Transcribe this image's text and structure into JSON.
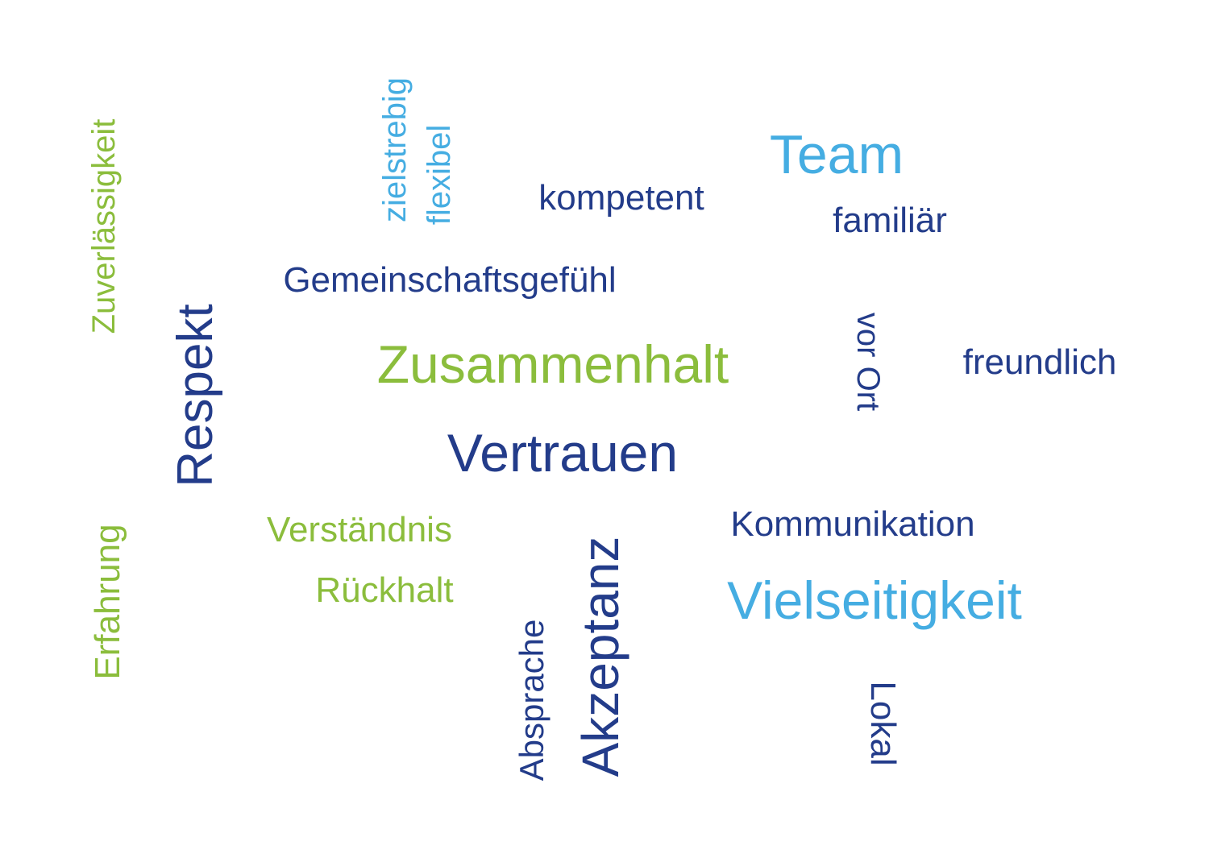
{
  "colors": {
    "navy": "#233c8a",
    "light_blue": "#45ade2",
    "green": "#8bbd3c"
  },
  "words": [
    {
      "text": "Zuverlässigkeit",
      "color": "green"
    },
    {
      "text": "zielstrebig",
      "color": "light_blue"
    },
    {
      "text": "flexibel",
      "color": "light_blue"
    },
    {
      "text": "kompetent",
      "color": "navy"
    },
    {
      "text": "Team",
      "color": "light_blue"
    },
    {
      "text": "familiär",
      "color": "navy"
    },
    {
      "text": "Gemeinschaftsgefühl",
      "color": "navy"
    },
    {
      "text": "Respekt",
      "color": "navy"
    },
    {
      "text": "Zusammenhalt",
      "color": "green"
    },
    {
      "text": "vor Ort",
      "color": "navy"
    },
    {
      "text": "freundlich",
      "color": "navy"
    },
    {
      "text": "Vertrauen",
      "color": "navy"
    },
    {
      "text": "Verständnis",
      "color": "green"
    },
    {
      "text": "Rückhalt",
      "color": "green"
    },
    {
      "text": "Erfahrung",
      "color": "green"
    },
    {
      "text": "Absprache",
      "color": "navy"
    },
    {
      "text": "Akzeptanz",
      "color": "navy"
    },
    {
      "text": "Kommunikation",
      "color": "navy"
    },
    {
      "text": "Vielseitigkeit",
      "color": "light_blue"
    },
    {
      "text": "Lokal",
      "color": "navy"
    }
  ]
}
